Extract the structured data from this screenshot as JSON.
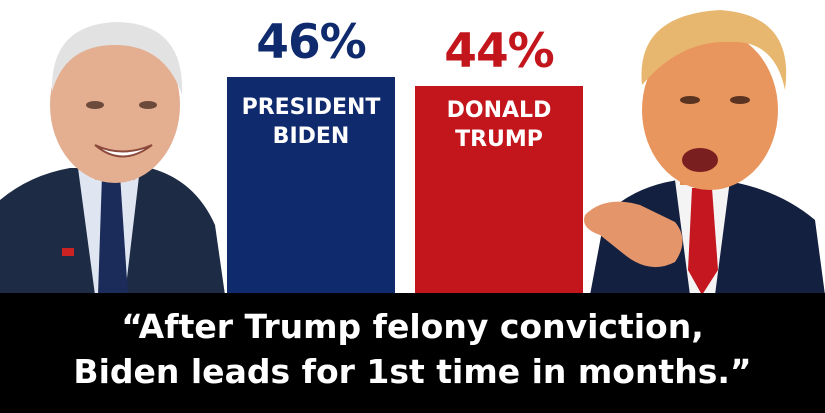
{
  "chart_data": {
    "type": "bar",
    "categories": [
      "PRESIDENT\nBIDEN",
      "DONALD\nTRUMP"
    ],
    "values": [
      46,
      44
    ],
    "value_labels": [
      "46%",
      "44%"
    ],
    "colors": [
      "#102a6e",
      "#c3161c"
    ],
    "title": "",
    "xlabel": "",
    "ylabel": ""
  },
  "photos": {
    "left": "Joe Biden photo",
    "right": "Donald Trump photo"
  },
  "caption": {
    "line1": "“After Trump felony conviction,",
    "line2": "Biden leads for 1st time in months.”"
  }
}
